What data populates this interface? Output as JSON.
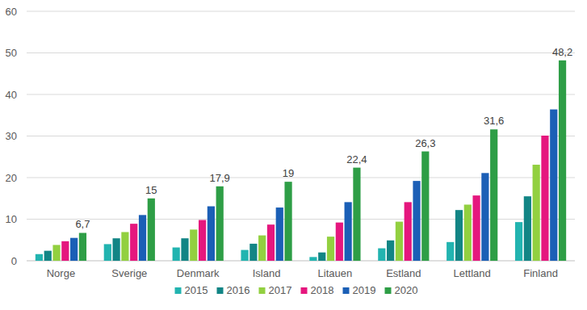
{
  "chart_data": {
    "type": "bar",
    "categories": [
      "Norge",
      "Sverige",
      "Denmark",
      "Island",
      "Litauen",
      "Estland",
      "Lettland",
      "Finland"
    ],
    "series": [
      {
        "name": "2015",
        "color": "#22b4b0",
        "values": [
          1.6,
          4.0,
          3.2,
          2.6,
          0.9,
          3.0,
          4.5,
          9.3
        ]
      },
      {
        "name": "2016",
        "color": "#128585",
        "values": [
          2.4,
          5.4,
          5.4,
          4.1,
          2.0,
          4.9,
          12.2,
          15.5
        ]
      },
      {
        "name": "2017",
        "color": "#92d040",
        "values": [
          3.8,
          6.9,
          7.5,
          6.1,
          5.8,
          9.4,
          13.5,
          23.1
        ]
      },
      {
        "name": "2018",
        "color": "#e5177e",
        "values": [
          4.7,
          8.9,
          9.8,
          8.7,
          9.2,
          14.1,
          15.7,
          30.1
        ]
      },
      {
        "name": "2019",
        "color": "#1b5fb6",
        "values": [
          5.5,
          11.0,
          13.1,
          12.8,
          14.1,
          19.2,
          21.1,
          36.4
        ]
      },
      {
        "name": "2020",
        "color": "#2e9e46",
        "values": [
          6.7,
          15,
          17.9,
          19,
          22.4,
          26.3,
          31.6,
          48.2
        ],
        "data_labels": true,
        "value_labels": [
          "6,7",
          "15",
          "17,9",
          "19",
          "22,4",
          "26,3",
          "31,6",
          "48,2"
        ]
      }
    ],
    "ylim": [
      0,
      60
    ],
    "yticks": [
      0,
      10,
      20,
      30,
      40,
      50,
      60
    ],
    "grid": true,
    "legend": "bottom"
  }
}
